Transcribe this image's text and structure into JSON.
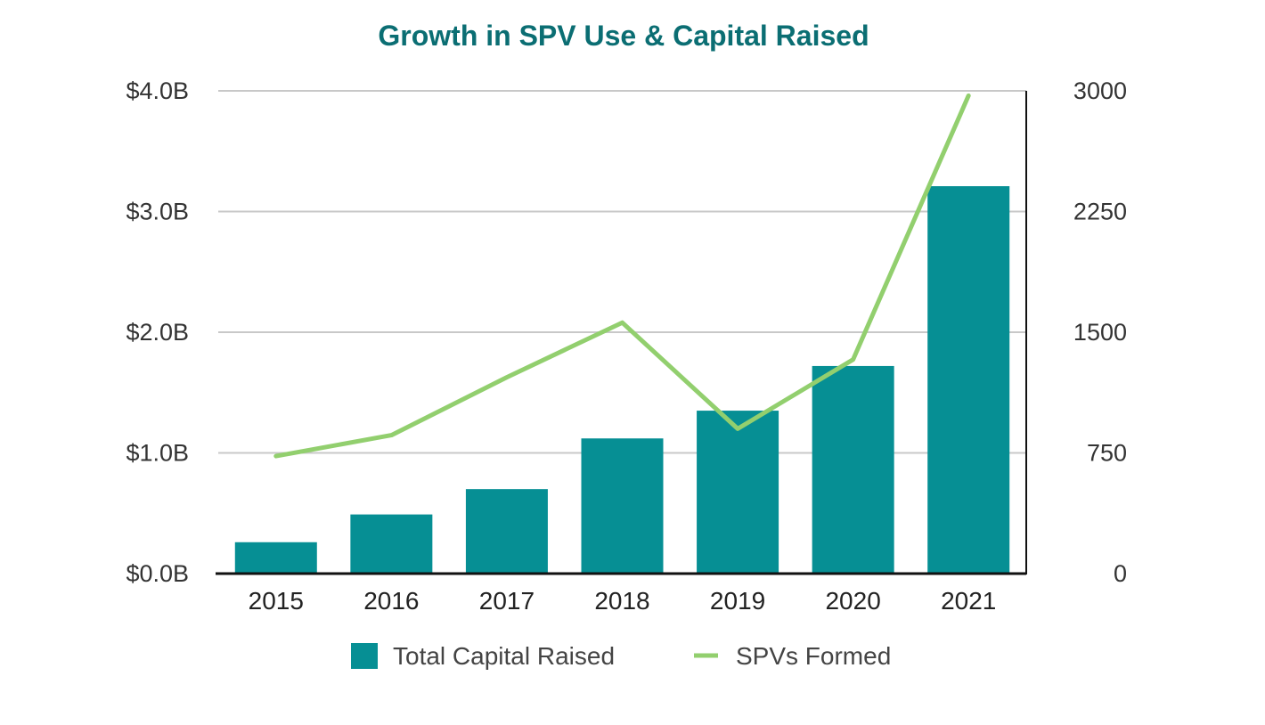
{
  "chart_data": {
    "type": "bar",
    "title": "Growth in SPV Use & Capital Raised",
    "categories": [
      "2015",
      "2016",
      "2017",
      "2018",
      "2019",
      "2020",
      "2021"
    ],
    "series": [
      {
        "name": "Total Capital Raised",
        "type": "bar",
        "axis": "left",
        "color": "#068f94",
        "values": [
          0.26,
          0.49,
          0.7,
          1.12,
          1.35,
          1.72,
          3.21
        ]
      },
      {
        "name": "SPVs Formed",
        "type": "line",
        "axis": "right",
        "color": "#92cf6e",
        "values": [
          730,
          860,
          1220,
          1560,
          900,
          1330,
          2970
        ]
      }
    ],
    "y_left": {
      "min": 0,
      "max": 4.0,
      "ticks": [
        0,
        1,
        2,
        3,
        4
      ],
      "tick_labels": [
        "$0.0B",
        "$1.0B",
        "$2.0B",
        "$3.0B",
        "$4.0B"
      ]
    },
    "y_right": {
      "min": 0,
      "max": 3000,
      "ticks": [
        0,
        750,
        1500,
        2250,
        3000
      ],
      "tick_labels": [
        "0",
        "750",
        "1500",
        "2250",
        "3000"
      ]
    },
    "grid": true,
    "legend": {
      "position": "bottom",
      "entries": [
        "Total Capital Raised",
        "SPVs Formed"
      ]
    },
    "colors": {
      "title": "#0b6e73",
      "grid": "#c8c8c8",
      "axis": "#111111"
    }
  }
}
